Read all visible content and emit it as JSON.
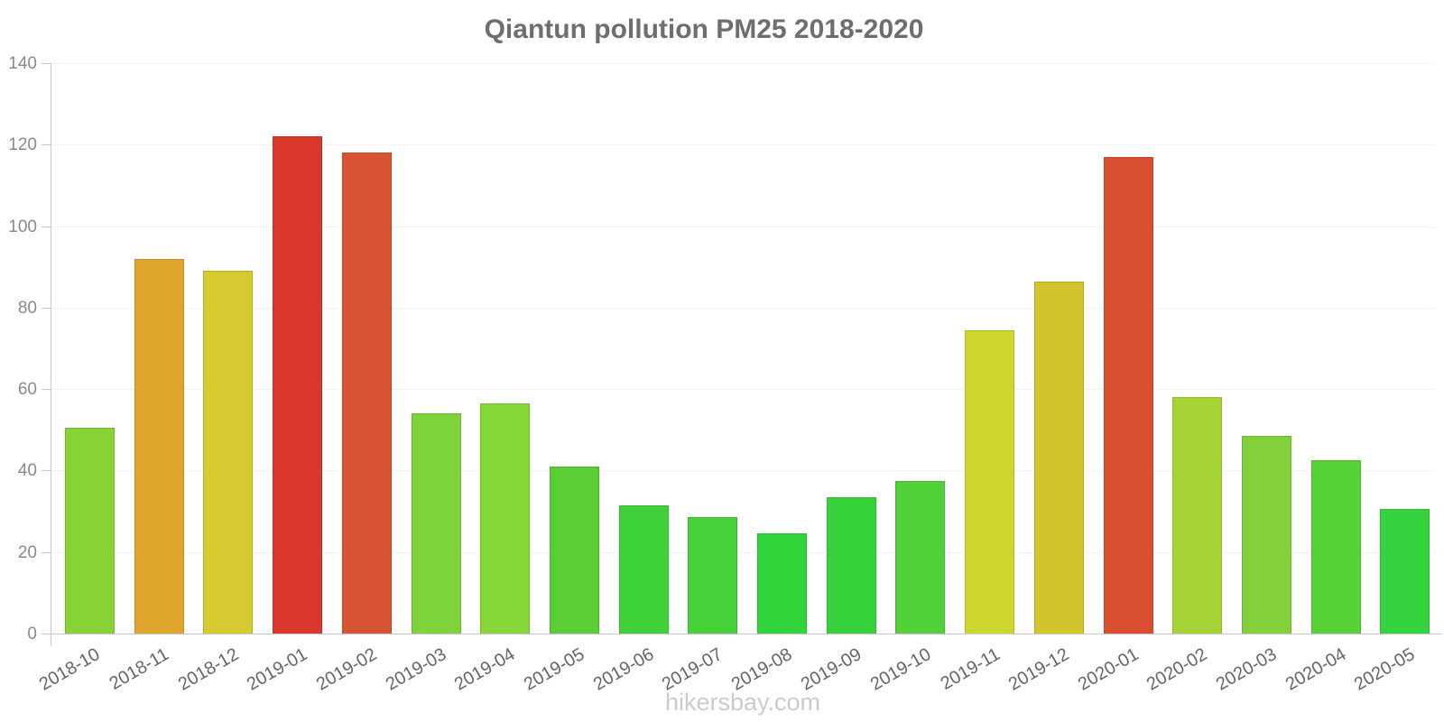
{
  "title": "Qiantun pollution PM25 2018-2020",
  "footer": "hikersbay.com",
  "colors": {
    "title": "#6e6e6e",
    "footer": "#cbcbcb",
    "axis": "#c9c9c9",
    "grid": "#f2f2f2",
    "y_tick_label": "#8a8a8a",
    "x_tick_label": "#666666"
  },
  "chart_data": {
    "type": "bar",
    "title": "Qiantun pollution PM25 2018-2020",
    "xlabel": "",
    "ylabel": "",
    "categories": [
      "2018-10",
      "2018-11",
      "2018-12",
      "2019-01",
      "2019-02",
      "2019-03",
      "2019-04",
      "2019-05",
      "2019-06",
      "2019-07",
      "2019-08",
      "2019-09",
      "2019-10",
      "2019-11",
      "2019-12",
      "2020-01",
      "2020-02",
      "2020-03",
      "2020-04",
      "2020-05"
    ],
    "values": [
      50.5,
      92,
      89,
      122,
      118,
      54,
      56.5,
      41,
      31.5,
      28.5,
      24.5,
      33.5,
      37.5,
      74.5,
      86.5,
      117,
      58,
      48.5,
      42.5,
      30.5
    ],
    "bar_colors": [
      "#87d335",
      "#dfa52d",
      "#d7ca30",
      "#da372f",
      "#d95432",
      "#7ed23a",
      "#85d637",
      "#5ace37",
      "#40d23a",
      "#46d139",
      "#32d43c",
      "#35d23c",
      "#52d03a",
      "#cdd52f",
      "#d4c42c",
      "#d94e31",
      "#a6d436",
      "#84d03a",
      "#57d138",
      "#35d33d"
    ],
    "ylim": [
      0,
      140
    ],
    "yticks": [
      0,
      20,
      40,
      60,
      80,
      100,
      120,
      140
    ],
    "grid": true,
    "legend": false,
    "x_tick_rotation_deg": -30,
    "watermark": "hikersbay.com"
  }
}
